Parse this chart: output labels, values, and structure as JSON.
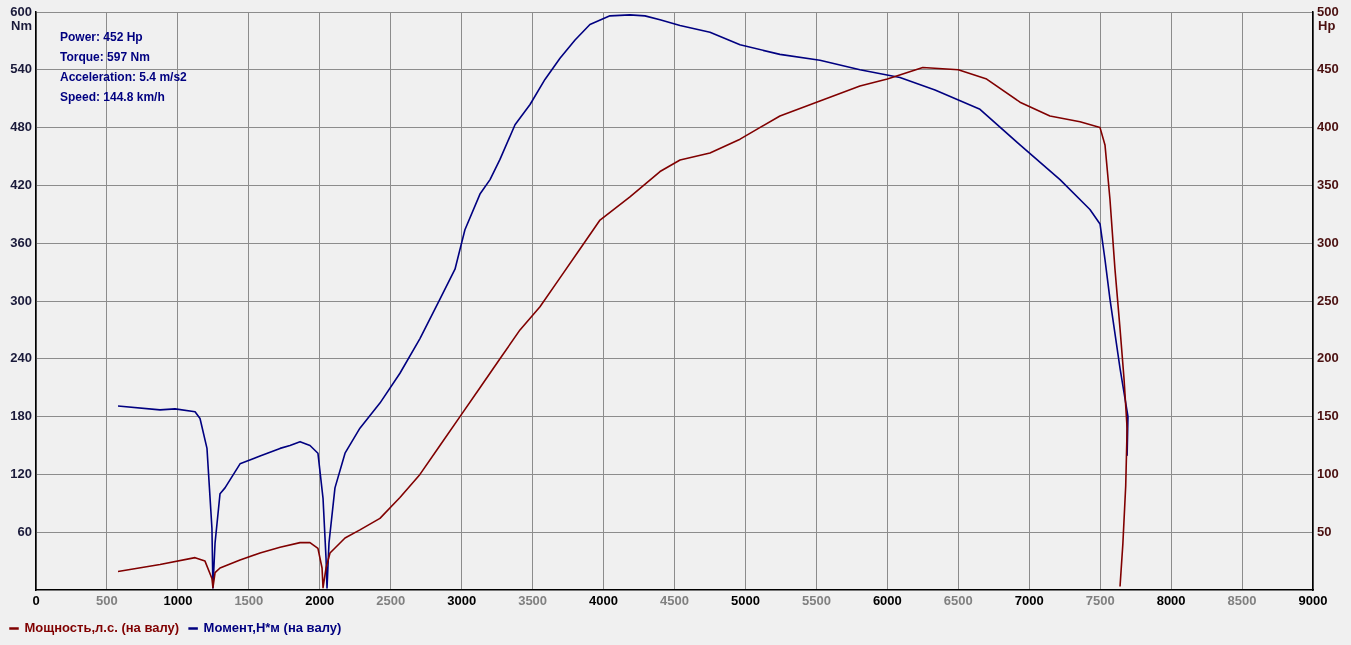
{
  "chart_data": {
    "type": "line",
    "xlabel": null,
    "ylabel": "Nm",
    "y2label": "Hp",
    "annotations": [
      "Power: 452 Hp",
      "Torque: 597 Nm",
      "Acceleration: 5.4 m/s2",
      "Speed: 144.8 km/h"
    ],
    "xlim": [
      0,
      9000
    ],
    "xticks": [
      {
        "value": 0,
        "label": "0"
      },
      500,
      1000,
      1500,
      2000,
      2500,
      3000,
      3500,
      4000,
      4500,
      5000,
      5500,
      6000,
      6500,
      7000,
      7500,
      8000,
      8500,
      9000
    ],
    "ylim": [
      0,
      600
    ],
    "yticks": [
      60,
      120,
      180,
      240,
      300,
      360,
      420,
      480,
      540,
      600
    ],
    "y2lim": [
      0,
      500
    ],
    "y2ticks": [
      50,
      100,
      150,
      200,
      250,
      300,
      350,
      400,
      450,
      500
    ],
    "grid": true,
    "legend": "bottom left",
    "marker": "none",
    "line_style": "solid",
    "series": [
      {
        "name": "Мощность,л.с. (на валу)",
        "color": "#800000",
        "axis": "y2",
        "x": [
          578,
          874,
          1121,
          1191,
          1240,
          1247,
          1262,
          1297,
          1438,
          1579,
          1720,
          1861,
          1931,
          1987,
          2016,
          2023,
          2044,
          2072,
          2178,
          2283,
          2424,
          2565,
          2706,
          2847,
          2988,
          3129,
          3270,
          3411,
          3552,
          3693,
          3834,
          3975,
          4186,
          4398,
          4539,
          4750,
          4962,
          5101,
          5243,
          5525,
          5807,
          6000,
          6250,
          6500,
          6700,
          6935,
          7146,
          7358,
          7499,
          7534,
          7569,
          7604,
          7640,
          7668,
          7690,
          7680,
          7660,
          7640
        ],
        "values": [
          16,
          22,
          28,
          25,
          10,
          2,
          15,
          19,
          26,
          32,
          37,
          41,
          41,
          36,
          19,
          2,
          19,
          32,
          45,
          52,
          62,
          80,
          100,
          125,
          150,
          175,
          200,
          225,
          245,
          270,
          295,
          320,
          340,
          362,
          372,
          378,
          390,
          400,
          410,
          423,
          436,
          442,
          452,
          450,
          442,
          422,
          410,
          405,
          400,
          385,
          338,
          278,
          226,
          183,
          140,
          90,
          40,
          3
        ]
      },
      {
        "name": "Момент,Н*м (на валу)",
        "color": "#000080",
        "axis": "y",
        "x": [
          578,
          874,
          980,
          1121,
          1156,
          1205,
          1240,
          1247,
          1262,
          1297,
          1332,
          1438,
          1579,
          1720,
          1790,
          1861,
          1931,
          1987,
          2023,
          2044,
          2051,
          2065,
          2107,
          2178,
          2283,
          2424,
          2565,
          2706,
          2847,
          2953,
          3023,
          3129,
          3200,
          3270,
          3376,
          3482,
          3587,
          3693,
          3799,
          3904,
          4045,
          4186,
          4292,
          4398,
          4539,
          4750,
          4962,
          5243,
          5525,
          5807,
          6089,
          6336,
          6653,
          6935,
          7217,
          7428,
          7499,
          7534,
          7569,
          7640,
          7696,
          7690
        ],
        "values": [
          191,
          187,
          188,
          185,
          178,
          147,
          64,
          2,
          49,
          100,
          106,
          131,
          139,
          147,
          150,
          154,
          150,
          142,
          95,
          33,
          2,
          49,
          106,
          142,
          168,
          194,
          225,
          261,
          302,
          333,
          374,
          411,
          426,
          447,
          483,
          504,
          530,
          552,
          571,
          587,
          596,
          597,
          596,
          592,
          586,
          579,
          566,
          556,
          550,
          540,
          532,
          519,
          499,
          462,
          426,
          395,
          380,
          343,
          302,
          230,
          180,
          140
        ]
      }
    ]
  }
}
